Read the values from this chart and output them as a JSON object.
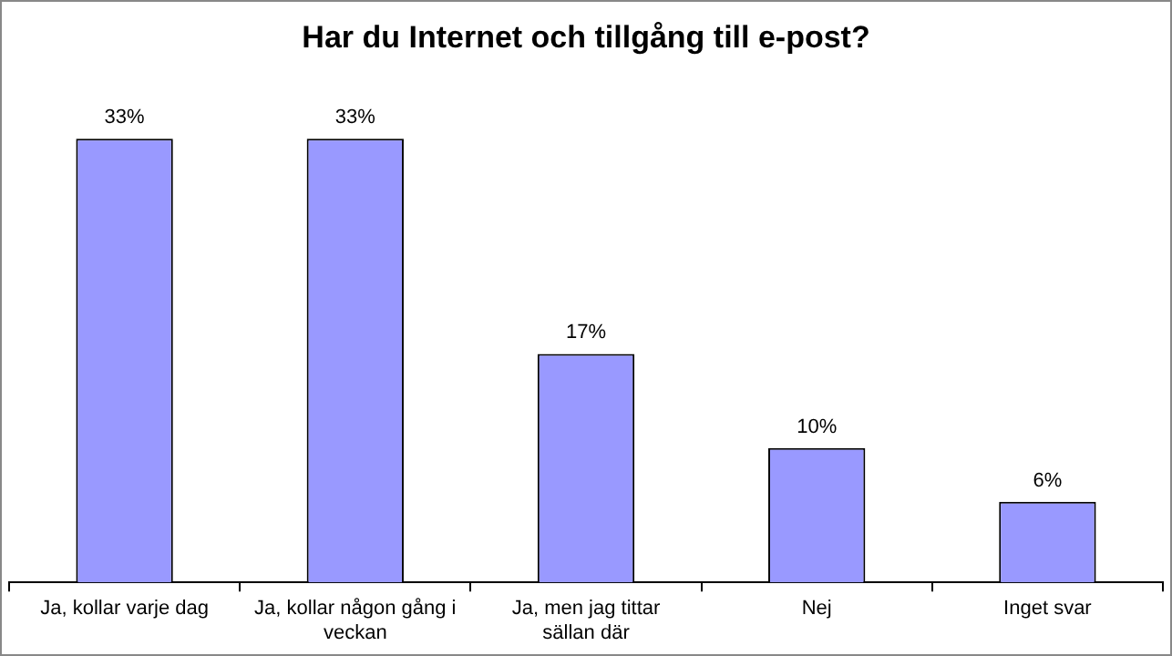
{
  "chart_data": {
    "type": "bar",
    "title": "Har du Internet och tillgång till e-post?",
    "categories": [
      "Ja, kollar varje dag",
      "Ja, kollar någon gång i veckan",
      "Ja, men jag tittar sällan där",
      "Nej",
      "Inget svar"
    ],
    "values": [
      33,
      33,
      17,
      10,
      6
    ],
    "value_labels": [
      "33%",
      "33%",
      "17%",
      "10%",
      "6%"
    ],
    "color": "#9999ff",
    "grid": false,
    "legend": false
  }
}
